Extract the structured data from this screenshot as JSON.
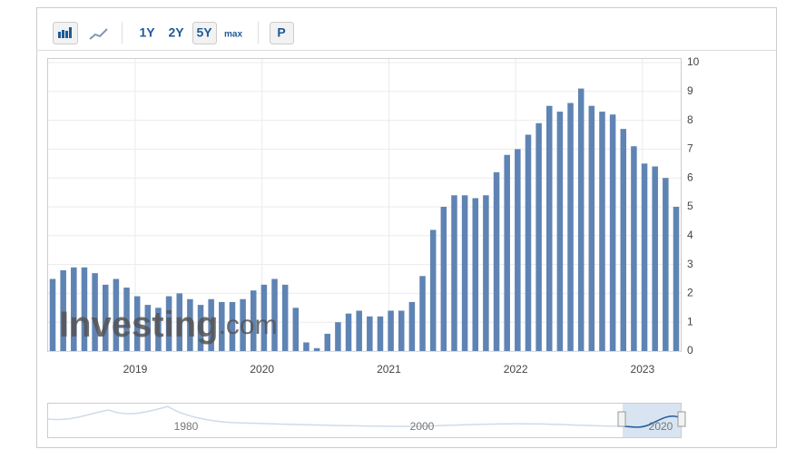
{
  "toolbar": {
    "buttons": [
      "1Y",
      "2Y",
      "5Y",
      "max",
      "P"
    ]
  },
  "chart_data": {
    "type": "bar",
    "categories": [
      null,
      null,
      null,
      null,
      null,
      null,
      null,
      null,
      null,
      "2019",
      null,
      null,
      null,
      null,
      null,
      null,
      null,
      null,
      null,
      null,
      null,
      "2020",
      null,
      null,
      null,
      null,
      null,
      null,
      null,
      null,
      null,
      null,
      null,
      "2021",
      null,
      null,
      null,
      null,
      null,
      null,
      null,
      null,
      null,
      null,
      null,
      "2022",
      null,
      null,
      null,
      null,
      null,
      null,
      null,
      null,
      null,
      null,
      null,
      "2023",
      null,
      null
    ],
    "values": [
      2.5,
      2.8,
      2.9,
      2.9,
      2.7,
      2.3,
      2.5,
      2.2,
      1.9,
      1.6,
      1.5,
      1.9,
      2.0,
      1.8,
      1.6,
      1.8,
      1.7,
      1.7,
      1.8,
      2.1,
      2.3,
      2.5,
      2.3,
      1.5,
      0.3,
      0.1,
      0.6,
      1.0,
      1.3,
      1.4,
      1.2,
      1.2,
      1.4,
      1.4,
      1.7,
      2.6,
      4.2,
      5.0,
      5.4,
      5.4,
      5.3,
      5.4,
      6.2,
      6.8,
      7.0,
      7.5,
      7.9,
      8.5,
      8.3,
      8.6,
      9.1,
      8.5,
      8.3,
      8.2,
      7.7,
      7.1,
      6.5,
      6.4,
      6.0,
      5.0
    ],
    "color": "#5f84b4",
    "ylim": [
      0,
      10
    ],
    "yticks": [
      0,
      1,
      2,
      3,
      4,
      5,
      6,
      7,
      8,
      9,
      10
    ],
    "grid": true
  },
  "navigator": {
    "labels": [
      "1980",
      "2000",
      "2020"
    ]
  },
  "watermark": {
    "brand": "Investing",
    "suffix": ".com"
  }
}
